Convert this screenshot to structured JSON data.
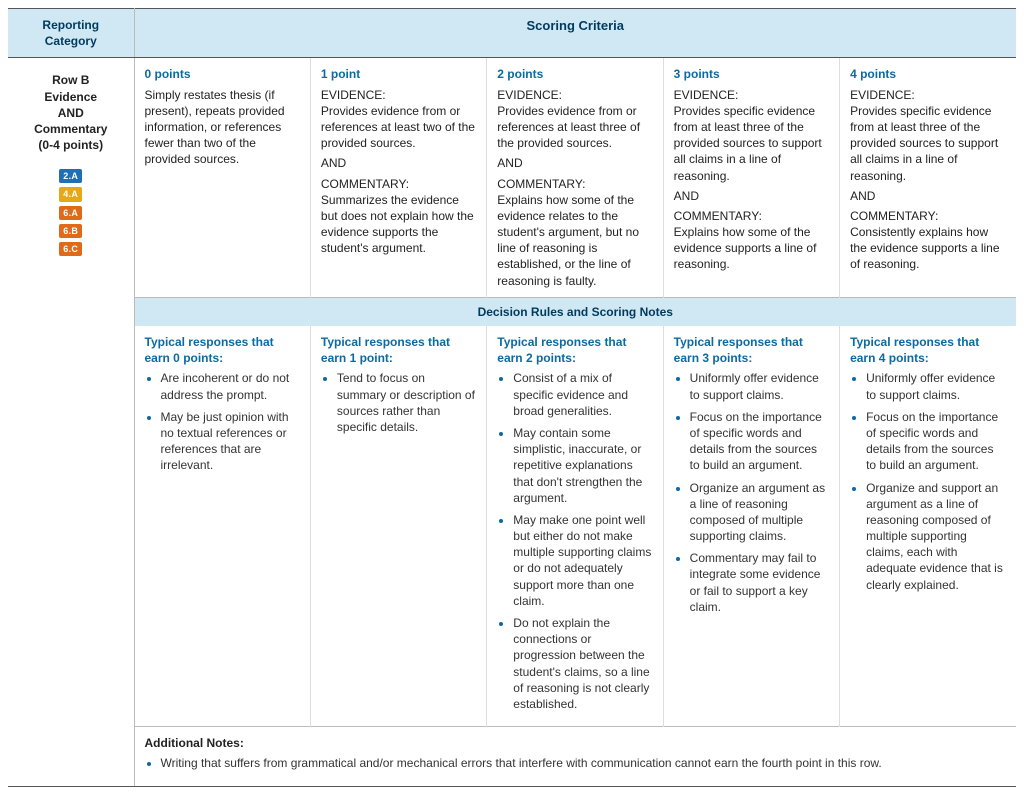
{
  "colors": {
    "header_bg": "#cfe8f3",
    "header_text": "#003a5d",
    "accent": "#0b6aa2",
    "badge_blue": "#1f6fb2",
    "badge_yellow": "#e6a817",
    "badge_orange": "#e06a1b"
  },
  "headers": {
    "reporting_category": "Reporting Category",
    "scoring_criteria": "Scoring Criteria",
    "decision_rules": "Decision Rules and Scoring Notes",
    "additional_notes": "Additional Notes:"
  },
  "row_label": {
    "line1": "Row B",
    "line2": "Evidence",
    "line3": "AND",
    "line4": "Commentary",
    "line5": "(0-4 points)",
    "badges": [
      {
        "text": "2.A",
        "color": "#1f6fb2"
      },
      {
        "text": "4.A",
        "color": "#e6a817"
      },
      {
        "text": "6.A",
        "color": "#e06a1b"
      },
      {
        "text": "6.B",
        "color": "#e06a1b"
      },
      {
        "text": "6.C",
        "color": "#e06a1b"
      }
    ]
  },
  "scores": [
    {
      "head": "0 points",
      "body": "Simply restates thesis (if present), repeats provided information, or references fewer than two of the provided sources.",
      "typical_head": "Typical responses that earn 0 points:",
      "typical": [
        "Are incoherent or do not address the prompt.",
        "May be just opinion with no textual references or references that are irrelevant."
      ]
    },
    {
      "head": "1 point",
      "body_evidence": "Provides evidence from or references at least two of the provided sources.",
      "body_commentary": "Summarizes the evidence but does not explain how the evidence supports the student's argument.",
      "typical_head": "Typical responses that earn 1 point:",
      "typical": [
        "Tend to focus on summary or description of sources rather than specific details."
      ]
    },
    {
      "head": "2 points",
      "body_evidence": "Provides evidence from or references at least three of the provided sources.",
      "body_commentary": "Explains how some of the evidence relates to the student's argument, but no line of reasoning is established, or the line of reasoning is faulty.",
      "typical_head": "Typical responses that earn 2 points:",
      "typical": [
        "Consist of a mix of specific evidence and broad generalities.",
        "May contain some simplistic, inaccurate, or repetitive explanations that don't strengthen the argument.",
        "May make one point well but either do not make multiple supporting claims or do not adequately support more than one claim.",
        "Do not explain the connections or progression between the student's claims, so a line of reasoning is not clearly established."
      ]
    },
    {
      "head": "3 points",
      "body_evidence": "Provides specific evidence from at least three of the provided sources to support all claims in a line of reasoning.",
      "body_commentary": "Explains how some of the evidence supports a line of reasoning.",
      "typical_head": "Typical responses that earn 3 points:",
      "typical": [
        "Uniformly offer evidence to support claims.",
        "Focus on the importance of specific words and details from the sources to build an argument.",
        "Organize an argument as a line of reasoning composed of multiple supporting claims.",
        "Commentary may fail to integrate some evidence or fail to support a key claim."
      ]
    },
    {
      "head": "4 points",
      "body_evidence": "Provides specific evidence from at least three of the provided sources to support all claims in a line of reasoning.",
      "body_commentary": "Consistently explains how the evidence supports a line of reasoning.",
      "typical_head": "Typical responses that earn 4 points:",
      "typical": [
        "Uniformly offer evidence to support claims.",
        "Focus on the importance of specific words and details from the sources to build an argument.",
        "Organize and support an argument as a line of reasoning composed of multiple supporting claims, each with adequate evidence that is clearly explained."
      ]
    }
  ],
  "labels": {
    "evidence": "EVIDENCE:",
    "and": "AND",
    "commentary": "COMMENTARY:"
  },
  "additional_notes": [
    "Writing that suffers from grammatical and/or mechanical errors that interfere with communication cannot earn the fourth point in this row."
  ]
}
